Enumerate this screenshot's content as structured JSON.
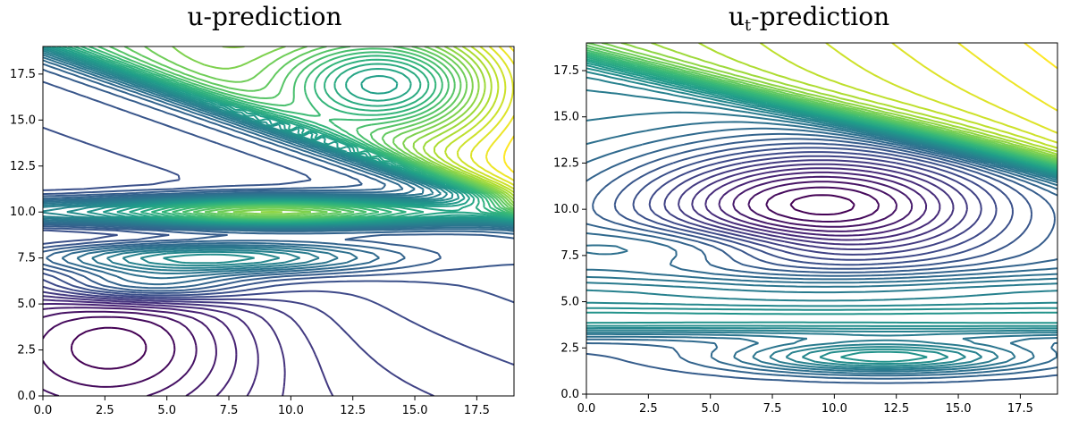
{
  "chart_data": [
    {
      "type": "contour",
      "title": "u-prediction",
      "xlim": [
        0,
        19
      ],
      "ylim": [
        0,
        19
      ],
      "xticks": [
        "0.0",
        "2.5",
        "5.0",
        "7.5",
        "10.0",
        "12.5",
        "15.0",
        "17.5"
      ],
      "yticks": [
        "0.0",
        "2.5",
        "5.0",
        "7.5",
        "10.0",
        "12.5",
        "15.0",
        "17.5"
      ],
      "colormap": "viridis",
      "grid": false,
      "description_levels": "dense bands along y=10 and y=7.5, high values (yellow) in the top-right staircase"
    },
    {
      "type": "contour",
      "title": "u",
      "title_subscript": "t",
      "title_suffix": "-prediction",
      "xlim": [
        0,
        19
      ],
      "ylim": [
        0,
        19
      ],
      "xticks": [
        "0.0",
        "2.5",
        "5.0",
        "7.5",
        "10.0",
        "12.5",
        "15.0",
        "17.5"
      ],
      "yticks": [
        "0.0",
        "2.5",
        "5.0",
        "7.5",
        "10.0",
        "12.5",
        "15.0",
        "17.5"
      ],
      "colormap": "viridis",
      "grid": false,
      "description_levels": "concentric closed contours around (9,10), bands near y=4 and y=2, high values in the top staircase"
    }
  ]
}
